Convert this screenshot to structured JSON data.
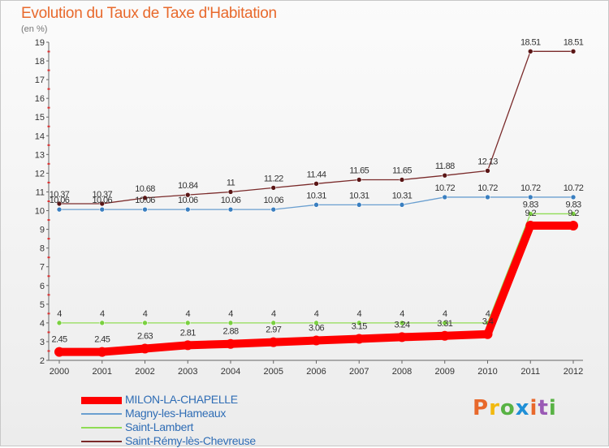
{
  "header": {
    "title": "Evolution du Taux de Taxe d'Habitation",
    "unit": "(en %)"
  },
  "logo": {
    "text": "Proxiti",
    "colors": [
      "#e8692c",
      "#f2b90f",
      "#58b244",
      "#1f8fd6",
      "#e8692c",
      "#9a59b5",
      "#58b244"
    ]
  },
  "chart_data": {
    "type": "line",
    "x": [
      "2000",
      "2001",
      "2002",
      "2003",
      "2004",
      "2005",
      "2006",
      "2007",
      "2008",
      "2009",
      "2010",
      "2011",
      "2012"
    ],
    "ylim": [
      2,
      19
    ],
    "yticks": [
      2,
      3,
      4,
      5,
      6,
      7,
      8,
      9,
      10,
      11,
      12,
      13,
      14,
      15,
      16,
      17,
      18,
      19
    ],
    "grid": false,
    "legend_position": "bottom-left",
    "series": [
      {
        "name": "MILON-LA-CHAPELLE",
        "color": "#ff0000",
        "values": [
          2.45,
          2.45,
          2.63,
          2.81,
          2.88,
          2.97,
          3.06,
          3.15,
          3.24,
          3.31,
          3.4,
          9.2,
          9.2
        ],
        "labels": [
          "2.45",
          "2.45",
          "2.63",
          "2.81",
          "2.88",
          "2.97",
          "3.06",
          "3.15",
          "3.24",
          "3.31",
          "3.4",
          "9.2",
          "9.2"
        ]
      },
      {
        "name": "Magny-les-Hameaux",
        "color": "#6a9fd0",
        "values": [
          10.06,
          10.06,
          10.06,
          10.06,
          10.06,
          10.06,
          10.31,
          10.31,
          10.31,
          10.72,
          10.72,
          10.72,
          10.72
        ],
        "labels": [
          "10.06",
          "10.06",
          "10.06",
          "10.06",
          "10.06",
          "10.06",
          "10.31",
          "10.31",
          "10.31",
          "10.72",
          "10.72",
          "10.72",
          "10.72"
        ]
      },
      {
        "name": "Saint-Lambert",
        "color": "#8fdc55",
        "values": [
          4,
          4,
          4,
          4,
          4,
          4,
          4,
          4,
          4,
          4,
          4,
          9.83,
          9.83
        ],
        "labels": [
          "4",
          "4",
          "4",
          "4",
          "4",
          "4",
          "4",
          "4",
          "4",
          "4",
          "4",
          "9.83",
          "9.83"
        ]
      },
      {
        "name": "Saint-Rémy-lès-Chevreuse",
        "color": "#7a2a2a",
        "values": [
          10.37,
          10.37,
          10.68,
          10.84,
          11,
          11.22,
          11.44,
          11.65,
          11.65,
          11.88,
          12.13,
          18.51,
          18.51
        ],
        "labels": [
          "10.37",
          "10.37",
          "10.68",
          "10.84",
          "11",
          "11.22",
          "11.44",
          "11.65",
          "11.65",
          "11.88",
          "12.13",
          "18.51",
          "18.51"
        ]
      }
    ]
  }
}
